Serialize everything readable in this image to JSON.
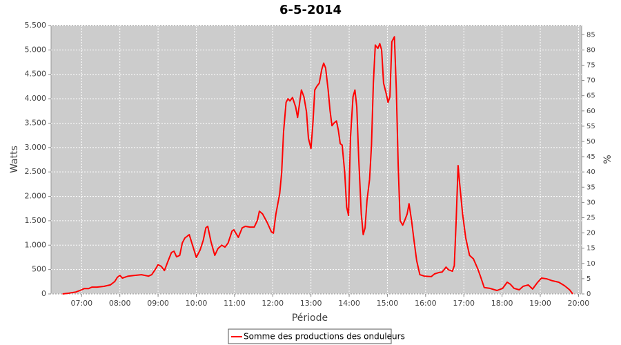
{
  "chart_data": {
    "type": "line",
    "title": "6-5-2014",
    "x_label": "Période",
    "y_label": "Watts",
    "y2_label": "%",
    "x": [
      "06:30",
      "06:40",
      "06:51",
      "07:00",
      "07:04",
      "07:11",
      "07:16",
      "07:24",
      "07:35",
      "07:45",
      "07:52",
      "07:56",
      "08:00",
      "08:04",
      "08:13",
      "08:23",
      "08:34",
      "08:45",
      "08:50",
      "08:56",
      "09:00",
      "09:05",
      "09:10",
      "09:15",
      "09:21",
      "09:25",
      "09:29",
      "09:34",
      "09:38",
      "09:42",
      "09:49",
      "09:53",
      "10:00",
      "10:06",
      "10:11",
      "10:15",
      "10:18",
      "10:23",
      "10:29",
      "10:34",
      "10:40",
      "10:45",
      "10:50",
      "10:56",
      "10:59",
      "11:06",
      "11:12",
      "11:17",
      "11:24",
      "11:31",
      "11:36",
      "11:39",
      "11:44",
      "11:51",
      "11:58",
      "12:01",
      "12:05",
      "12:11",
      "12:14",
      "12:17",
      "12:21",
      "12:24",
      "12:27",
      "12:31",
      "12:36",
      "12:39",
      "12:41",
      "12:45",
      "12:49",
      "12:53",
      "12:56",
      "13:00",
      "13:03",
      "13:06",
      "13:09",
      "13:13",
      "13:17",
      "13:20",
      "13:23",
      "13:27",
      "13:30",
      "13:33",
      "13:36",
      "13:40",
      "13:43",
      "13:46",
      "13:49",
      "13:53",
      "13:56",
      "13:59",
      "14:02",
      "14:06",
      "14:09",
      "14:12",
      "14:15",
      "14:19",
      "14:22",
      "14:25",
      "14:28",
      "14:32",
      "14:35",
      "14:38",
      "14:41",
      "14:45",
      "14:48",
      "14:51",
      "14:54",
      "14:58",
      "15:01",
      "15:04",
      "15:07",
      "15:11",
      "15:14",
      "15:17",
      "15:20",
      "15:24",
      "15:27",
      "15:31",
      "15:34",
      "15:38",
      "15:42",
      "15:46",
      "15:51",
      "15:58",
      "16:09",
      "16:14",
      "16:21",
      "16:26",
      "16:32",
      "16:36",
      "16:42",
      "16:45",
      "16:48",
      "16:51",
      "16:53",
      "16:58",
      "17:03",
      "17:09",
      "17:15",
      "17:22",
      "17:26",
      "17:32",
      "17:41",
      "17:52",
      "18:01",
      "18:08",
      "18:13",
      "18:19",
      "18:27",
      "18:33",
      "18:41",
      "18:48",
      "18:55",
      "19:02",
      "19:10",
      "19:19",
      "19:29",
      "19:38",
      "19:46",
      "19:51"
    ],
    "series": [
      {
        "name": "Somme des productions des onduleurs",
        "color": "#ff0000",
        "values": [
          0,
          15,
          40,
          85,
          110,
          110,
          140,
          140,
          155,
          185,
          255,
          340,
          380,
          325,
          365,
          380,
          395,
          365,
          395,
          510,
          600,
          565,
          480,
          650,
          850,
          875,
          760,
          790,
          1045,
          1145,
          1215,
          1045,
          750,
          900,
          1100,
          1355,
          1385,
          1075,
          790,
          930,
          1000,
          960,
          1045,
          1285,
          1315,
          1160,
          1355,
          1385,
          1370,
          1370,
          1510,
          1695,
          1640,
          1470,
          1270,
          1245,
          1640,
          2060,
          2485,
          3330,
          3925,
          4000,
          3955,
          4025,
          3830,
          3615,
          3800,
          4180,
          4040,
          3730,
          3190,
          2980,
          3475,
          4180,
          4250,
          4320,
          4600,
          4730,
          4630,
          4180,
          3760,
          3445,
          3500,
          3545,
          3360,
          3080,
          3050,
          2485,
          1780,
          1610,
          3190,
          4040,
          4180,
          3830,
          2770,
          1640,
          1215,
          1355,
          1920,
          2345,
          3050,
          4320,
          5100,
          5030,
          5130,
          5000,
          4320,
          4110,
          3925,
          4040,
          5170,
          5270,
          4180,
          2630,
          1500,
          1410,
          1500,
          1640,
          1850,
          1500,
          1075,
          680,
          395,
          365,
          355,
          410,
          440,
          450,
          550,
          495,
          465,
          580,
          1500,
          2630,
          2320,
          1640,
          1145,
          790,
          720,
          510,
          365,
          130,
          115,
          70,
          115,
          240,
          200,
          115,
          85,
          155,
          185,
          100,
          225,
          325,
          310,
          270,
          240,
          170,
          85,
          0
        ]
      }
    ],
    "xlim": [
      "06:12",
      "20:05"
    ],
    "xticks": [
      "07:00",
      "08:00",
      "09:00",
      "10:00",
      "11:00",
      "12:00",
      "13:00",
      "14:00",
      "15:00",
      "16:00",
      "17:00",
      "18:00",
      "19:00",
      "20:00"
    ],
    "ylim": [
      0,
      5500
    ],
    "yticks": [
      0,
      500,
      {
        "value": 1000,
        "label": "1.000"
      },
      {
        "value": 1500,
        "label": "1.500"
      },
      {
        "value": 2000,
        "label": "2.000"
      },
      {
        "value": 2500,
        "label": "2.500"
      },
      {
        "value": 3000,
        "label": "3.000"
      },
      {
        "value": 3500,
        "label": "3.500"
      },
      {
        "value": 4000,
        "label": "4.000"
      },
      {
        "value": 4500,
        "label": "4.500"
      },
      {
        "value": 5000,
        "label": "5.000"
      },
      {
        "value": 5500,
        "label": "5.500"
      }
    ],
    "y2lim": [
      0,
      88
    ],
    "y2ticks": [
      0,
      5,
      10,
      15,
      20,
      25,
      30,
      35,
      40,
      45,
      50,
      55,
      60,
      65,
      70,
      75,
      80,
      85
    ],
    "grid": true
  }
}
